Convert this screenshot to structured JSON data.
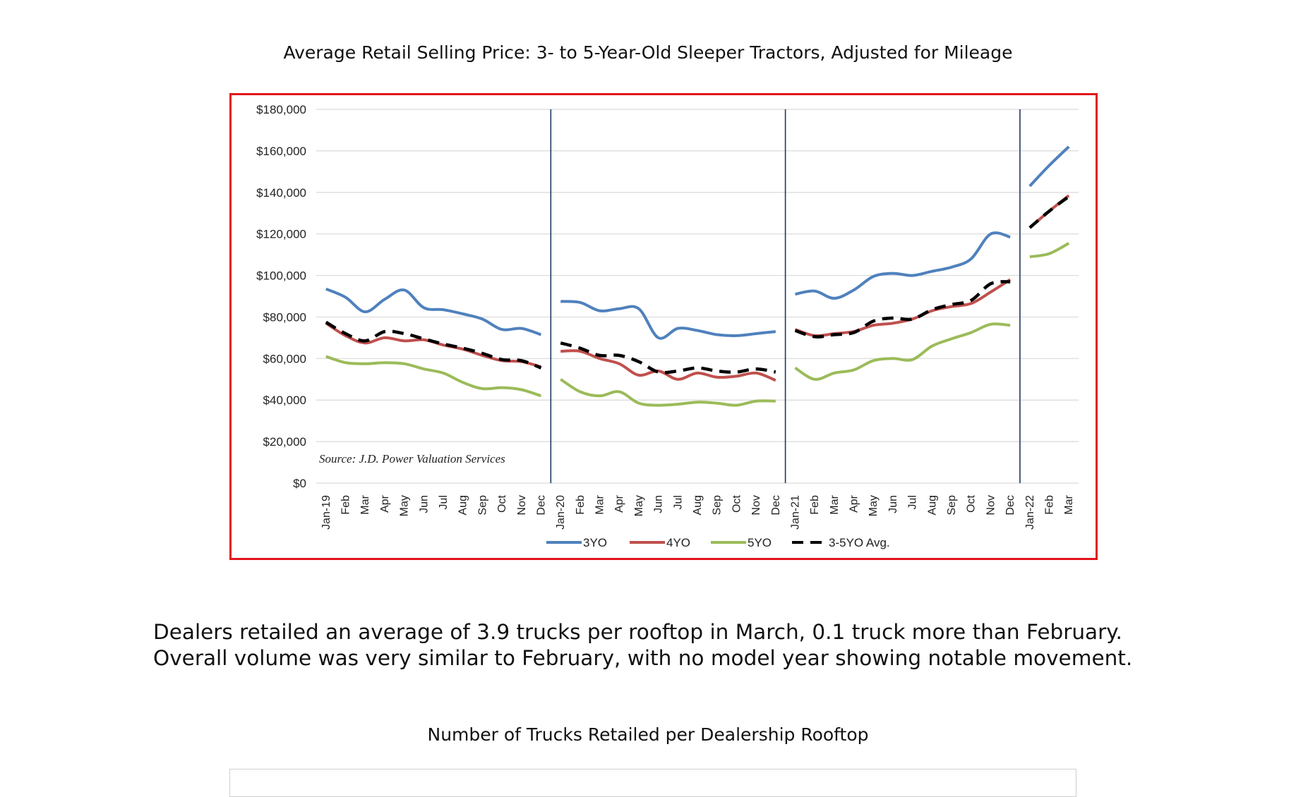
{
  "title1": "Average Retail Selling Price: 3- to 5-Year-Old Sleeper Tractors, Adjusted for Mileage",
  "paragraph": "Dealers retailed an average of 3.9 trucks per rooftop in March, 0.1 truck more than February. Overall volume was very similar to February, with no model year showing notable movement.",
  "title2": "Number of Trucks Retailed per Dealership Rooftop",
  "chart_data": {
    "type": "line",
    "title": "Average Retail Selling Price: 3- to 5-Year-Old Sleeper Tractors, Adjusted for Mileage",
    "xlabel": "",
    "ylabel": "",
    "ylim": [
      0,
      180000
    ],
    "yticks": [
      "$0",
      "$20,000",
      "$40,000",
      "$60,000",
      "$80,000",
      "$100,000",
      "$120,000",
      "$140,000",
      "$160,000",
      "$180,000"
    ],
    "grid": true,
    "legend_position": "bottom",
    "source": "Source: J.D. Power Valuation Services",
    "year_boundaries": [
      {
        "before": 11,
        "after": 12
      },
      {
        "before": 23,
        "after": 24
      },
      {
        "before": 35,
        "after": 36
      }
    ],
    "x": [
      "Jan-19",
      "Feb",
      "Mar",
      "Apr",
      "May",
      "Jun",
      "Jul",
      "Aug",
      "Sep",
      "Oct",
      "Nov",
      "Dec",
      "Jan-20",
      "Feb",
      "Mar",
      "Apr",
      "May",
      "Jun",
      "Jul",
      "Aug",
      "Sep",
      "Oct",
      "Nov",
      "Dec",
      "Jan-21",
      "Feb",
      "Mar",
      "Apr",
      "May",
      "Jun",
      "Jul",
      "Aug",
      "Sep",
      "Oct",
      "Nov",
      "Dec",
      "Jan-22",
      "Feb",
      "Mar"
    ],
    "series": [
      {
        "name": "3YO",
        "color": "#4f81bd",
        "dash": false,
        "values": [
          93500,
          89500,
          82500,
          88500,
          93000,
          84500,
          83500,
          81500,
          79000,
          74000,
          74500,
          71500,
          87500,
          87000,
          83000,
          84000,
          84000,
          70000,
          74500,
          73500,
          71500,
          71000,
          72000,
          73000,
          91000,
          92500,
          89000,
          93000,
          99500,
          101000,
          100000,
          102000,
          104000,
          108000,
          120000,
          118500,
          143000,
          153000,
          162000
        ]
      },
      {
        "name": "4YO",
        "color": "#c0504d",
        "dash": false,
        "values": [
          77000,
          71000,
          67500,
          70000,
          68500,
          69000,
          66500,
          64500,
          61500,
          59000,
          58500,
          56000,
          63500,
          63500,
          60000,
          57500,
          52000,
          54000,
          50000,
          53000,
          51000,
          51500,
          53000,
          49500,
          74000,
          71000,
          72000,
          73000,
          76000,
          77000,
          79000,
          83000,
          85000,
          86500,
          92000,
          98000,
          123000,
          131000,
          138500
        ]
      },
      {
        "name": "5YO",
        "color": "#9bbb59",
        "dash": false,
        "values": [
          61000,
          58000,
          57500,
          58000,
          57500,
          55000,
          53000,
          48500,
          45500,
          46000,
          45000,
          42000,
          50000,
          44000,
          42000,
          44000,
          38500,
          37500,
          38000,
          39000,
          38500,
          37500,
          39500,
          39500,
          55500,
          50000,
          53000,
          54500,
          59000,
          60000,
          59500,
          66000,
          69500,
          72500,
          76500,
          76000,
          109000,
          110500,
          115500
        ]
      },
      {
        "name": "3-5YO Avg.",
        "color": "#000000",
        "dash": true,
        "values": [
          77500,
          72000,
          68500,
          73000,
          72000,
          69500,
          67000,
          65000,
          62500,
          59500,
          59000,
          55500,
          67500,
          65000,
          61500,
          61500,
          58500,
          53500,
          54000,
          55500,
          54000,
          53500,
          55000,
          53500,
          73500,
          70500,
          71500,
          72500,
          78000,
          79500,
          79000,
          83500,
          86000,
          88000,
          96000,
          97000,
          123000,
          131000,
          138000
        ]
      }
    ]
  }
}
